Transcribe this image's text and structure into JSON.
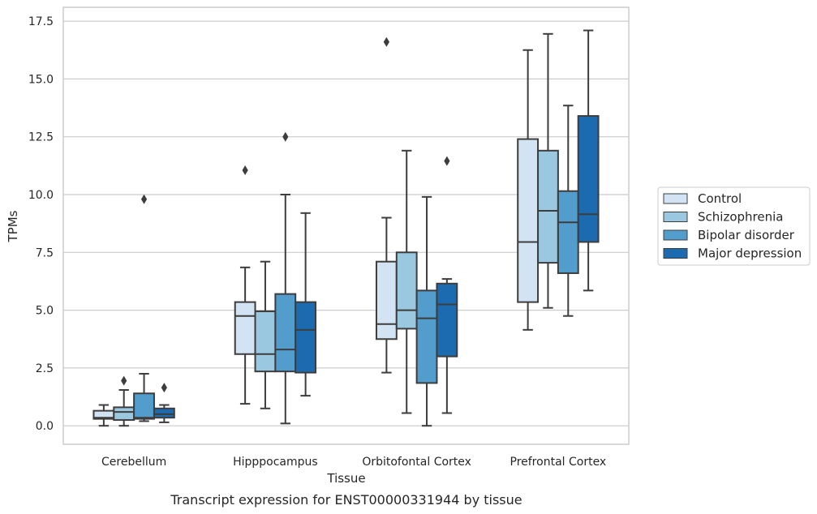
{
  "chart_data": {
    "type": "box",
    "caption": "Transcript expression for ENST00000331944 by tissue",
    "xlabel": "Tissue",
    "ylabel": "TPMs",
    "ylim": [
      -0.8,
      18.1
    ],
    "yticks": [
      "0.0",
      "2.5",
      "5.0",
      "7.5",
      "10.0",
      "12.5",
      "15.0",
      "17.5"
    ],
    "ytick_values": [
      0,
      2.5,
      5,
      7.5,
      10,
      12.5,
      15,
      17.5
    ],
    "grid": "horizontal",
    "legend_position": "right",
    "categories": [
      "Cerebellum",
      "Hipppocampus",
      "Orbitofontal Cortex",
      "Prefrontal Cortex"
    ],
    "series": [
      {
        "name": "Control",
        "color": "#d2e3f3",
        "boxes": [
          {
            "whisker_low": 0.0,
            "q1": 0.3,
            "median": 0.35,
            "q3": 0.65,
            "whisker_high": 0.9,
            "outliers": []
          },
          {
            "whisker_low": 0.95,
            "q1": 3.1,
            "median": 4.75,
            "q3": 5.35,
            "whisker_high": 6.85,
            "outliers": [
              11.05
            ]
          },
          {
            "whisker_low": 2.3,
            "q1": 3.75,
            "median": 4.4,
            "q3": 7.1,
            "whisker_high": 9.0,
            "outliers": [
              16.6
            ]
          },
          {
            "whisker_low": 4.15,
            "q1": 5.35,
            "median": 7.95,
            "q3": 12.4,
            "whisker_high": 16.25,
            "outliers": []
          }
        ]
      },
      {
        "name": "Schizophrenia",
        "color": "#9ac8e0",
        "boxes": [
          {
            "whisker_low": 0.0,
            "q1": 0.25,
            "median": 0.6,
            "q3": 0.8,
            "whisker_high": 1.55,
            "outliers": [
              1.95
            ]
          },
          {
            "whisker_low": 0.75,
            "q1": 2.35,
            "median": 3.1,
            "q3": 4.95,
            "whisker_high": 7.1,
            "outliers": []
          },
          {
            "whisker_low": 0.55,
            "q1": 4.2,
            "median": 5.0,
            "q3": 7.5,
            "whisker_high": 11.9,
            "outliers": []
          },
          {
            "whisker_low": 5.1,
            "q1": 7.05,
            "median": 9.3,
            "q3": 11.9,
            "whisker_high": 16.95,
            "outliers": []
          }
        ]
      },
      {
        "name": "Bipolar disorder",
        "color": "#529dcc",
        "boxes": [
          {
            "whisker_low": 0.2,
            "q1": 0.3,
            "median": 0.35,
            "q3": 1.4,
            "whisker_high": 2.25,
            "outliers": [
              9.8
            ]
          },
          {
            "whisker_low": 0.1,
            "q1": 2.35,
            "median": 3.3,
            "q3": 5.7,
            "whisker_high": 10.0,
            "outliers": [
              12.5
            ]
          },
          {
            "whisker_low": 0.0,
            "q1": 1.85,
            "median": 4.65,
            "q3": 5.85,
            "whisker_high": 9.9,
            "outliers": []
          },
          {
            "whisker_low": 4.75,
            "q1": 6.6,
            "median": 8.8,
            "q3": 10.15,
            "whisker_high": 13.85,
            "outliers": []
          }
        ]
      },
      {
        "name": "Major depression",
        "color": "#1c6aaf",
        "boxes": [
          {
            "whisker_low": 0.15,
            "q1": 0.35,
            "median": 0.5,
            "q3": 0.75,
            "whisker_high": 0.9,
            "outliers": [
              1.65
            ]
          },
          {
            "whisker_low": 1.3,
            "q1": 2.3,
            "median": 4.15,
            "q3": 5.35,
            "whisker_high": 9.2,
            "outliers": []
          },
          {
            "whisker_low": 0.55,
            "q1": 3.0,
            "median": 5.25,
            "q3": 6.15,
            "whisker_high": 6.35,
            "outliers": [
              11.45
            ]
          },
          {
            "whisker_low": 5.85,
            "q1": 7.95,
            "median": 9.15,
            "q3": 13.4,
            "whisker_high": 17.1,
            "outliers": []
          }
        ]
      }
    ]
  }
}
